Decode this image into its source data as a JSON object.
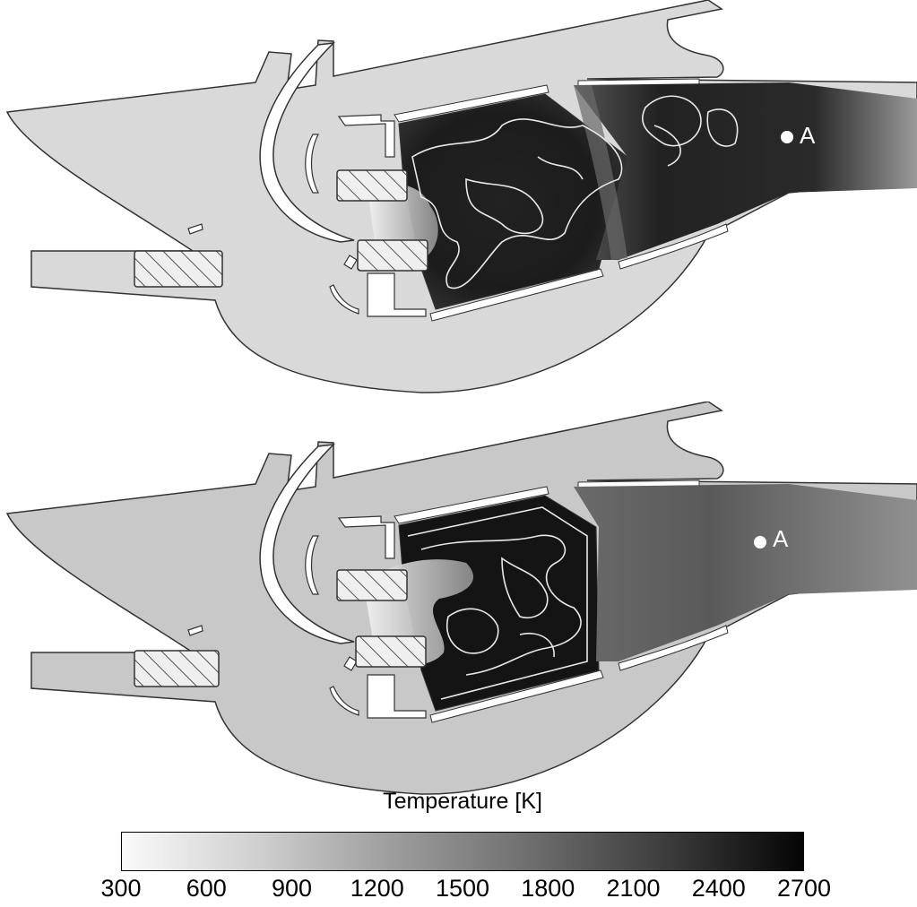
{
  "panels": [
    {
      "point_label": "A"
    },
    {
      "point_label": "A"
    }
  ],
  "colorbar": {
    "title": "Temperature [K]",
    "ticks": [
      "300",
      "600",
      "900",
      "1200",
      "1500",
      "1800",
      "2100",
      "2400",
      "2700"
    ],
    "range": [
      300,
      2700
    ],
    "colors": {
      "min": "#fafafa",
      "max": "#050505"
    }
  },
  "colors": {
    "solid": "#d6d6d6",
    "outline": "#333333",
    "flame_core": "#181818",
    "isoline": "#e6e6e6"
  }
}
